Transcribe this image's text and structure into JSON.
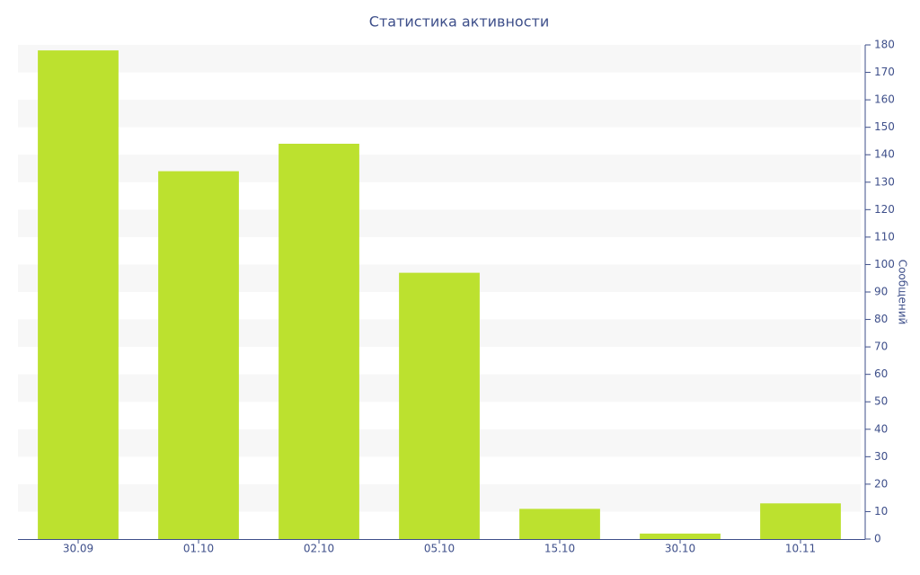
{
  "chart_data": {
    "type": "bar",
    "title": "Статистика активности",
    "y_label": "Сообщений",
    "categories": [
      "30.09",
      "01.10",
      "02.10",
      "05.10",
      "15.10",
      "30.10",
      "10.11"
    ],
    "values": [
      178,
      134,
      144,
      97,
      11,
      2,
      13
    ],
    "color": "#bce12f",
    "ylim": [
      0,
      180
    ],
    "yticks": [
      0,
      10,
      20,
      30,
      40,
      50,
      60,
      70,
      80,
      90,
      100,
      110,
      120,
      130,
      140,
      150,
      160,
      170,
      180
    ],
    "grid": "bands",
    "y_axis_side": "right"
  }
}
